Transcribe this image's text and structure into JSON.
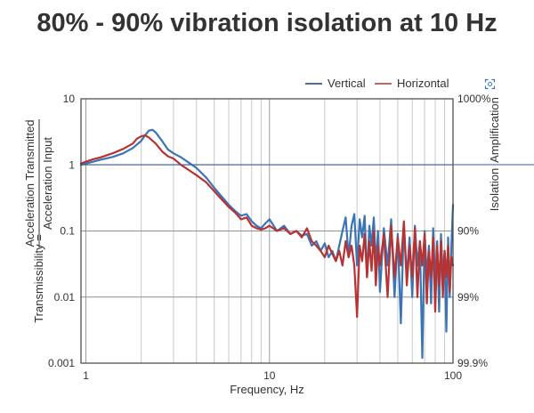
{
  "header": {
    "title": "80% - 90% vibration isolation at 10 Hz"
  },
  "chart_data": {
    "type": "line",
    "title": "80% - 90% vibration isolation at 10 Hz",
    "xlabel": "Frequency, Hz",
    "ylabel_prefix": "Transmissibility =",
    "ylabel_numerator": "Acceleration Transmitted",
    "ylabel_denominator": "Acceleration Input",
    "right_label_top": "Amplification",
    "right_label_bottom": "Isolation",
    "x_scale": "log",
    "y_scale": "log",
    "xlim": [
      0.94,
      100
    ],
    "ylim": [
      0.001,
      10
    ],
    "x_ticks": [
      {
        "value": 1,
        "label": "1"
      },
      {
        "value": 10,
        "label": "10"
      },
      {
        "value": 100,
        "label": "100"
      }
    ],
    "y_ticks": [
      {
        "value": 10,
        "label": "10"
      },
      {
        "value": 1,
        "label": "1"
      },
      {
        "value": 0.1,
        "label": "0.1"
      },
      {
        "value": 0.01,
        "label": "0.01"
      },
      {
        "value": 0.001,
        "label": "0.001"
      }
    ],
    "right_ticks": [
      {
        "value": 10,
        "label": "1000%"
      },
      {
        "value": 0.1,
        "label": "90%"
      },
      {
        "value": 0.01,
        "label": "99%"
      },
      {
        "value": 0.001,
        "label": "99.9%"
      }
    ],
    "grid": true,
    "legend_position": "top-right",
    "series": [
      {
        "name": "Vertical",
        "color": "#3a74b5",
        "x": [
          0.94,
          1.0,
          1.1,
          1.2,
          1.4,
          1.6,
          1.8,
          2.0,
          2.1,
          2.2,
          2.3,
          2.4,
          2.6,
          2.8,
          3.0,
          3.3,
          3.6,
          4.0,
          4.5,
          5.0,
          5.5,
          6.0,
          6.5,
          7.0,
          7.5,
          8.0,
          8.5,
          9.0,
          9.5,
          10,
          11,
          12,
          13,
          14,
          15,
          16,
          17,
          18,
          19,
          20,
          21,
          22,
          23,
          24,
          25,
          26,
          27,
          28,
          29,
          30,
          31,
          32,
          33,
          34,
          35,
          36,
          37,
          38,
          39,
          40,
          42,
          44,
          46,
          48,
          50,
          52,
          54,
          56,
          58,
          60,
          62,
          64,
          66,
          68,
          70,
          72,
          74,
          76,
          78,
          80,
          82,
          84,
          86,
          88,
          90,
          92,
          94,
          96,
          98,
          100
        ],
        "y": [
          1.0,
          1.05,
          1.12,
          1.2,
          1.32,
          1.5,
          1.8,
          2.3,
          2.8,
          3.3,
          3.4,
          3.1,
          2.3,
          1.7,
          1.5,
          1.3,
          1.1,
          0.9,
          0.65,
          0.45,
          0.33,
          0.25,
          0.2,
          0.17,
          0.18,
          0.14,
          0.12,
          0.11,
          0.13,
          0.15,
          0.1,
          0.12,
          0.09,
          0.1,
          0.085,
          0.09,
          0.06,
          0.07,
          0.05,
          0.065,
          0.04,
          0.05,
          0.035,
          0.06,
          0.1,
          0.16,
          0.04,
          0.12,
          0.18,
          0.03,
          0.15,
          0.08,
          0.17,
          0.02,
          0.12,
          0.06,
          0.16,
          0.03,
          0.1,
          0.012,
          0.11,
          0.03,
          0.15,
          0.01,
          0.09,
          0.004,
          0.13,
          0.02,
          0.08,
          0.01,
          0.12,
          0.03,
          0.07,
          0.0012,
          0.1,
          0.02,
          0.06,
          0.008,
          0.11,
          0.015,
          0.07,
          0.006,
          0.09,
          0.02,
          0.05,
          0.003,
          0.08,
          0.01,
          0.06,
          0.25
        ]
      },
      {
        "name": "Horizontal",
        "color": "#b83232",
        "x": [
          0.94,
          1.0,
          1.1,
          1.2,
          1.4,
          1.6,
          1.8,
          1.9,
          2.0,
          2.1,
          2.2,
          2.4,
          2.6,
          2.8,
          3.0,
          3.3,
          3.6,
          4.0,
          4.5,
          5.0,
          5.5,
          6.0,
          6.5,
          7.0,
          7.5,
          8.0,
          8.5,
          9.0,
          9.5,
          10,
          11,
          12,
          13,
          14,
          15,
          16,
          17,
          18,
          19,
          20,
          21,
          22,
          23,
          24,
          25,
          26,
          27,
          28,
          29,
          30,
          31,
          32,
          33,
          34,
          35,
          36,
          37,
          38,
          39,
          40,
          42,
          44,
          46,
          48,
          50,
          52,
          54,
          56,
          58,
          60,
          62,
          64,
          66,
          68,
          70,
          72,
          74,
          76,
          78,
          80,
          82,
          84,
          86,
          88,
          90,
          92,
          94,
          96,
          98,
          100
        ],
        "y": [
          1.05,
          1.12,
          1.22,
          1.3,
          1.5,
          1.75,
          2.1,
          2.5,
          2.7,
          2.8,
          2.6,
          2.1,
          1.6,
          1.35,
          1.25,
          1.0,
          0.85,
          0.7,
          0.55,
          0.4,
          0.3,
          0.23,
          0.19,
          0.15,
          0.16,
          0.12,
          0.11,
          0.105,
          0.11,
          0.12,
          0.1,
          0.11,
          0.09,
          0.1,
          0.08,
          0.11,
          0.07,
          0.06,
          0.05,
          0.04,
          0.06,
          0.045,
          0.035,
          0.05,
          0.03,
          0.07,
          0.04,
          0.06,
          0.03,
          0.005,
          0.06,
          0.035,
          0.09,
          0.02,
          0.07,
          0.025,
          0.1,
          0.015,
          0.06,
          0.03,
          0.09,
          0.01,
          0.12,
          0.02,
          0.08,
          0.03,
          0.14,
          0.015,
          0.06,
          0.02,
          0.11,
          0.01,
          0.07,
          0.03,
          0.09,
          0.008,
          0.05,
          0.02,
          0.08,
          0.006,
          0.06,
          0.015,
          0.07,
          0.01,
          0.05,
          0.02,
          0.06,
          0.012,
          0.04,
          0.03
        ]
      }
    ]
  }
}
